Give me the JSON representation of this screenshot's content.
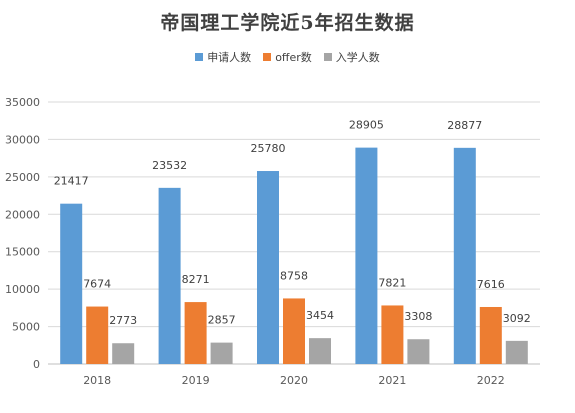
{
  "chart_data": {
    "type": "bar",
    "title": "帝国理工学院近5年招生数据",
    "categories": [
      "2018",
      "2019",
      "2020",
      "2021",
      "2022"
    ],
    "series": [
      {
        "name": "申请人数",
        "values": [
          21417,
          23532,
          25780,
          28905,
          28877
        ],
        "color": "#5b9bd5"
      },
      {
        "name": "offer数",
        "values": [
          7674,
          8271,
          8758,
          7821,
          7616
        ],
        "color": "#ed7d31"
      },
      {
        "name": "入学人数",
        "values": [
          2773,
          2857,
          3454,
          3308,
          3092
        ],
        "color": "#a5a5a5"
      }
    ],
    "ylim": [
      0,
      35000
    ],
    "yticks": [
      0,
      5000,
      10000,
      15000,
      20000,
      25000,
      30000,
      35000
    ],
    "xlabel": "",
    "ylabel": "",
    "grid": true,
    "legend_position": "top"
  }
}
